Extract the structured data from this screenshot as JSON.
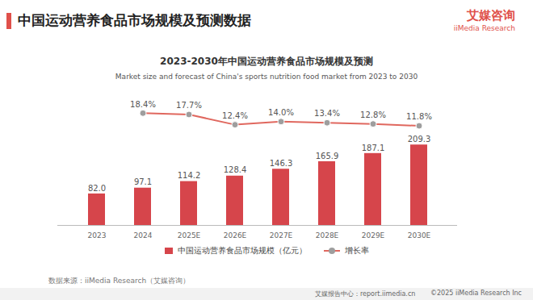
{
  "header": {
    "title": "中国运动营养食品市场规模及预测数据",
    "logo": "艾媒咨询",
    "logo_en": "iiMedia Research"
  },
  "chart_data": {
    "type": "bar",
    "title": "2023-2030年中国运动营养食品市场规模及预测",
    "subtitle": "Market size and forecast of China's sports nutrition food market  from 2023 to 2030",
    "categories": [
      "2023",
      "2024",
      "2025E",
      "2026E",
      "2027E",
      "2028E",
      "2029E",
      "2030E"
    ],
    "series": [
      {
        "name": "中国运动营养食品市场规模（亿元）",
        "type": "bar",
        "color": "#d6454b",
        "values": [
          82.0,
          97.1,
          114.2,
          128.4,
          146.3,
          165.9,
          187.1,
          209.3
        ],
        "value_labels": [
          "82.0",
          "97.1",
          "114.2",
          "128.4",
          "146.3",
          "165.9",
          "187.1",
          "209.3"
        ]
      },
      {
        "name": "增长率",
        "type": "line",
        "axis": "y2",
        "color": "#e0685f",
        "marker": "circle",
        "values": [
          null,
          18.4,
          17.7,
          12.4,
          14.0,
          13.4,
          12.8,
          11.8
        ],
        "value_labels": [
          null,
          "18.4%",
          "17.7%",
          "12.4%",
          "14.0%",
          "13.4%",
          "12.8%",
          "11.8%"
        ]
      }
    ],
    "ylim": [
      0,
      300
    ],
    "y2lim": [
      -40,
      20
    ],
    "grid": false,
    "data_labels": true,
    "tick_labels": "x",
    "legend": "bottom"
  },
  "source": "数据来源：iiMedia Research（艾媒咨询）",
  "footer": {
    "left": "艾媒报告中心：report.iimedia.cn",
    "right": "©2025  iiMedia Research  Inc"
  }
}
